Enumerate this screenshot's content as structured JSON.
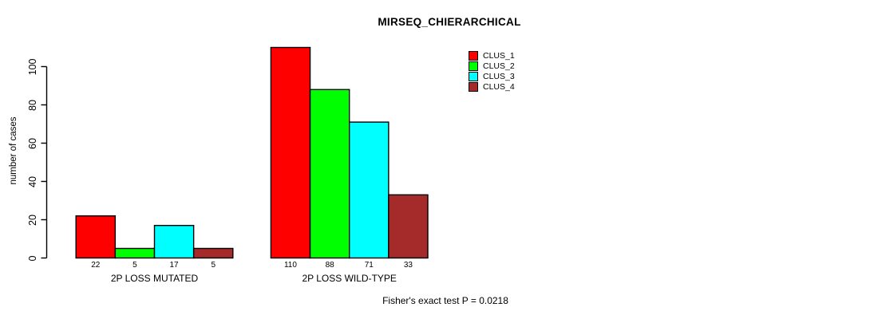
{
  "title": "MIRSEQ_CHIERARCHICAL",
  "caption": "Fisher's exact test P = 0.0218",
  "chart_data": {
    "type": "bar",
    "categories": [
      "2P LOSS MUTATED",
      "2P LOSS WILD-TYPE"
    ],
    "series": [
      {
        "name": "CLUS_1",
        "color": "#FF0000",
        "values": [
          22,
          110
        ]
      },
      {
        "name": "CLUS_2",
        "color": "#00FF00",
        "values": [
          5,
          88
        ]
      },
      {
        "name": "CLUS_3",
        "color": "#00FFFF",
        "values": [
          17,
          71
        ]
      },
      {
        "name": "CLUS_4",
        "color": "#A52A2A",
        "values": [
          5,
          33
        ]
      }
    ],
    "ylabel": "number of cases",
    "xlabel": "",
    "yticks": [
      0,
      20,
      40,
      60,
      80,
      100
    ],
    "ylim": [
      0,
      110
    ],
    "show_bar_values": true,
    "bar_border_color": "#000000",
    "grid": false,
    "legend_position": "top-right"
  }
}
